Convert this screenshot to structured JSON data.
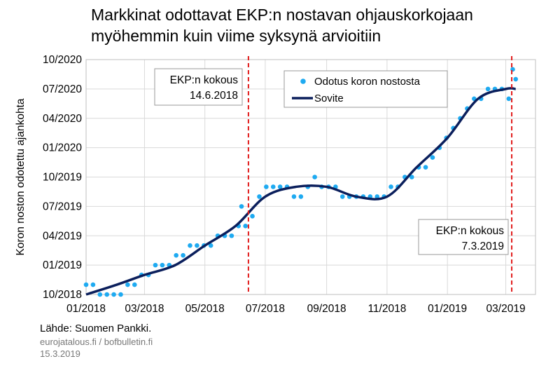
{
  "title_lines": [
    "Markkinat odottavat EKP:n nostavan ohjauskorkojaan",
    "myöhemmin kuin viime syksynä arvioitiin"
  ],
  "source": "Lähde: Suomen Pankki.",
  "sites": "eurojatalous.fi  / bofbulletin.fi",
  "pub_date": "15.3.2019",
  "colors": {
    "dots": "#1eaaf1",
    "fit": "#0b1f5c",
    "vline": "#e11b1b",
    "grid": "#d9d9d9"
  },
  "chart_data": {
    "type": "scatter",
    "title": "Markkinat odottavat EKP:n nostavan ohjauskorkojaan myöhemmin kuin viime syksynä arvioitiin",
    "xlabel": "",
    "ylabel": "Koron noston odotettu ajankohta",
    "x_unit": "date",
    "y_unit": "month",
    "xlim": [
      "2018-01-01",
      "2019-03-31"
    ],
    "ylim": [
      "2018-10",
      "2020-10"
    ],
    "x_ticks": [
      "01/2018",
      "03/2018",
      "05/2018",
      "07/2018",
      "09/2018",
      "11/2018",
      "01/2019",
      "03/2019"
    ],
    "x_tick_dates": [
      "2018-01-01",
      "2018-03-01",
      "2018-05-01",
      "2018-07-01",
      "2018-09-01",
      "2018-11-01",
      "2019-01-01",
      "2019-03-01"
    ],
    "y_ticks": [
      "10/2018",
      "01/2019",
      "04/2019",
      "07/2019",
      "10/2019",
      "01/2020",
      "04/2020",
      "07/2020",
      "10/2020"
    ],
    "grid": true,
    "legend_position": "top-center",
    "legend": [
      "Odotus koron nostosta",
      "Sovite"
    ],
    "series": [
      {
        "name": "Odotus koron nostosta",
        "kind": "scatter",
        "points": [
          [
            "2018-01-01",
            "2018-11"
          ],
          [
            "2018-01-08",
            "2018-11"
          ],
          [
            "2018-01-15",
            "2018-10"
          ],
          [
            "2018-01-22",
            "2018-10"
          ],
          [
            "2018-01-29",
            "2018-10"
          ],
          [
            "2018-02-05",
            "2018-10"
          ],
          [
            "2018-02-12",
            "2018-11"
          ],
          [
            "2018-02-19",
            "2018-11"
          ],
          [
            "2018-02-26",
            "2018-12"
          ],
          [
            "2018-03-05",
            "2018-12"
          ],
          [
            "2018-03-12",
            "2019-01"
          ],
          [
            "2018-03-19",
            "2019-01"
          ],
          [
            "2018-03-26",
            "2019-01"
          ],
          [
            "2018-04-02",
            "2019-02"
          ],
          [
            "2018-04-09",
            "2019-02"
          ],
          [
            "2018-04-16",
            "2019-03"
          ],
          [
            "2018-04-23",
            "2019-03"
          ],
          [
            "2018-04-30",
            "2019-03"
          ],
          [
            "2018-05-07",
            "2019-03"
          ],
          [
            "2018-05-14",
            "2019-04"
          ],
          [
            "2018-05-21",
            "2019-04"
          ],
          [
            "2018-05-28",
            "2019-04"
          ],
          [
            "2018-06-04",
            "2019-05"
          ],
          [
            "2018-06-07",
            "2019-07"
          ],
          [
            "2018-06-11",
            "2019-05"
          ],
          [
            "2018-06-18",
            "2019-06"
          ],
          [
            "2018-06-25",
            "2019-08"
          ],
          [
            "2018-07-02",
            "2019-09"
          ],
          [
            "2018-07-09",
            "2019-09"
          ],
          [
            "2018-07-16",
            "2019-09"
          ],
          [
            "2018-07-23",
            "2019-09"
          ],
          [
            "2018-07-30",
            "2019-08"
          ],
          [
            "2018-08-06",
            "2019-08"
          ],
          [
            "2018-08-13",
            "2019-09"
          ],
          [
            "2018-08-20",
            "2019-10"
          ],
          [
            "2018-08-27",
            "2019-09"
          ],
          [
            "2018-09-03",
            "2019-09"
          ],
          [
            "2018-09-10",
            "2019-09"
          ],
          [
            "2018-09-17",
            "2019-08"
          ],
          [
            "2018-09-24",
            "2019-08"
          ],
          [
            "2018-10-01",
            "2019-08"
          ],
          [
            "2018-10-08",
            "2019-08"
          ],
          [
            "2018-10-15",
            "2019-08"
          ],
          [
            "2018-10-22",
            "2019-08"
          ],
          [
            "2018-10-29",
            "2019-08"
          ],
          [
            "2018-11-05",
            "2019-09"
          ],
          [
            "2018-11-12",
            "2019-09"
          ],
          [
            "2018-11-19",
            "2019-10"
          ],
          [
            "2018-11-26",
            "2019-10"
          ],
          [
            "2018-12-03",
            "2019-11"
          ],
          [
            "2018-12-10",
            "2019-11"
          ],
          [
            "2018-12-17",
            "2019-12"
          ],
          [
            "2018-12-24",
            "2020-01"
          ],
          [
            "2018-12-31",
            "2020-02"
          ],
          [
            "2019-01-07",
            "2020-03"
          ],
          [
            "2019-01-14",
            "2020-04"
          ],
          [
            "2019-01-21",
            "2020-05"
          ],
          [
            "2019-01-28",
            "2020-06"
          ],
          [
            "2019-02-04",
            "2020-06"
          ],
          [
            "2019-02-11",
            "2020-07"
          ],
          [
            "2019-02-18",
            "2020-07"
          ],
          [
            "2019-02-25",
            "2020-07"
          ],
          [
            "2019-03-04",
            "2020-06"
          ],
          [
            "2019-03-08",
            "2020-09"
          ],
          [
            "2019-03-11",
            "2020-08"
          ]
        ]
      },
      {
        "name": "Sovite",
        "kind": "line",
        "points": [
          [
            "2018-01-01",
            "2018-10"
          ],
          [
            "2018-02-01",
            "2018-11"
          ],
          [
            "2018-03-01",
            "2018-12"
          ],
          [
            "2018-04-01",
            "2019-01"
          ],
          [
            "2018-05-01",
            "2019-03"
          ],
          [
            "2018-06-01",
            "2019-05"
          ],
          [
            "2018-07-01",
            "2019-08"
          ],
          [
            "2018-08-01",
            "2019-09"
          ],
          [
            "2018-09-01",
            "2019-09"
          ],
          [
            "2018-10-01",
            "2019-08"
          ],
          [
            "2018-11-01",
            "2019-08"
          ],
          [
            "2018-12-01",
            "2019-11"
          ],
          [
            "2019-01-01",
            "2020-02"
          ],
          [
            "2019-02-01",
            "2020-06"
          ],
          [
            "2019-03-01",
            "2020-07"
          ],
          [
            "2019-03-11",
            "2020-07"
          ]
        ]
      }
    ],
    "annotations": [
      {
        "date": "2018-06-14",
        "label_line1": "EKP:n kokous",
        "label_line2": "14.6.2018"
      },
      {
        "date": "2019-03-07",
        "label_line1": "EKP:n kokous",
        "label_line2": "7.3.2019"
      }
    ]
  }
}
